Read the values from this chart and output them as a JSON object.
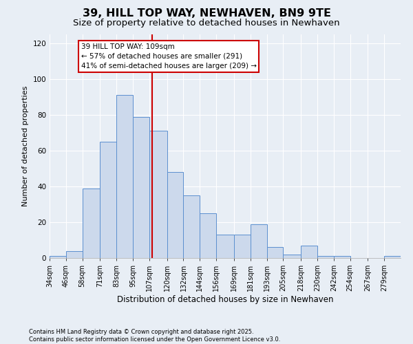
{
  "title": "39, HILL TOP WAY, NEWHAVEN, BN9 9TE",
  "subtitle": "Size of property relative to detached houses in Newhaven",
  "xlabel": "Distribution of detached houses by size in Newhaven",
  "ylabel": "Number of detached properties",
  "footer_line1": "Contains HM Land Registry data © Crown copyright and database right 2025.",
  "footer_line2": "Contains public sector information licensed under the Open Government Licence v3.0.",
  "bins": [
    "34sqm",
    "46sqm",
    "58sqm",
    "71sqm",
    "83sqm",
    "95sqm",
    "107sqm",
    "120sqm",
    "132sqm",
    "144sqm",
    "156sqm",
    "169sqm",
    "181sqm",
    "193sqm",
    "205sqm",
    "218sqm",
    "230sqm",
    "242sqm",
    "254sqm",
    "267sqm",
    "279sqm"
  ],
  "values": [
    1,
    4,
    39,
    65,
    91,
    79,
    71,
    48,
    35,
    25,
    13,
    13,
    19,
    6,
    2,
    7,
    1,
    1,
    0,
    0,
    1
  ],
  "bin_edges": [
    34,
    46,
    58,
    71,
    83,
    95,
    107,
    120,
    132,
    144,
    156,
    169,
    181,
    193,
    205,
    218,
    230,
    242,
    254,
    267,
    279,
    291
  ],
  "bar_color": "#ccd9ec",
  "bar_edge_color": "#5b8fcf",
  "property_value": 109,
  "vline_color": "#cc0000",
  "annotation_text": "39 HILL TOP WAY: 109sqm\n← 57% of detached houses are smaller (291)\n41% of semi-detached houses are larger (209) →",
  "annotation_box_color": "#ffffff",
  "annotation_box_edge_color": "#cc0000",
  "ylim": [
    0,
    125
  ],
  "yticks": [
    0,
    20,
    40,
    60,
    80,
    100,
    120
  ],
  "background_color": "#e8eef5",
  "grid_color": "#ffffff",
  "title_fontsize": 11.5,
  "subtitle_fontsize": 9.5,
  "ylabel_fontsize": 8,
  "xlabel_fontsize": 8.5,
  "tick_fontsize": 7,
  "footer_fontsize": 6,
  "annotation_fontsize": 7.5
}
